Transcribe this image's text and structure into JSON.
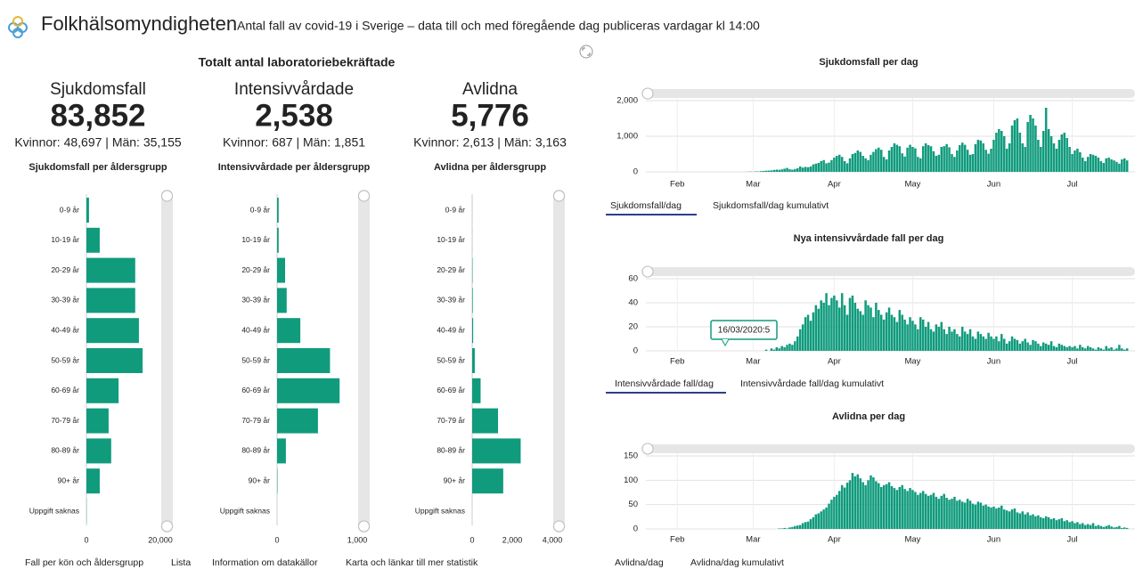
{
  "header": {
    "title": "Folkhälsomyndigheten",
    "subtitle": "Antal fall av covid-19 i Sverige – data till och med föregående dag publiceras vardagar kl 14:00"
  },
  "totals": {
    "title": "Totalt antal laboratoriebekräftade",
    "items": [
      {
        "label": "Sjukdomsfall",
        "value": "83,852",
        "detail": "Kvinnor: 48,697 | Män: 35,155"
      },
      {
        "label": "Intensivvårdade",
        "value": "2,538",
        "detail": "Kvinnor: 687 | Män: 1,851"
      },
      {
        "label": "Avlidna",
        "value": "5,776",
        "detail": "Kvinnor: 2,613 | Män: 3,163"
      }
    ]
  },
  "chart_data": [
    {
      "type": "hbar",
      "title": "Sjukdomsfall per åldersgrupp",
      "categories": [
        "0-9 år",
        "10-19 år",
        "20-29 år",
        "30-39 år",
        "40-49 år",
        "50-59 år",
        "60-69 år",
        "70-79 år",
        "80-89 år",
        "90+ år",
        "Uppgift saknas"
      ],
      "values": [
        700,
        3600,
        13200,
        13200,
        14200,
        15200,
        8700,
        6000,
        6700,
        3600,
        50
      ],
      "color": "#109b7d",
      "xlim": [
        0,
        20000
      ],
      "xticks": [
        0,
        {
          "value": 20000,
          "label": "20,000"
        }
      ]
    },
    {
      "type": "hbar",
      "title": "Intensivvårdade per åldersgrupp",
      "categories": [
        "0-9 år",
        "10-19 år",
        "20-29 år",
        "30-39 år",
        "40-49 år",
        "50-59 år",
        "60-69 år",
        "70-79 år",
        "80-89 år",
        "90+ år",
        "Uppgift saknas"
      ],
      "values": [
        20,
        20,
        100,
        120,
        290,
        660,
        780,
        510,
        110,
        5,
        0
      ],
      "color": "#109b7d",
      "xlim": [
        0,
        1000
      ],
      "xticks": [
        0,
        {
          "value": 1000,
          "label": "1,000"
        }
      ]
    },
    {
      "type": "hbar",
      "title": "Avlidna per åldersgrupp",
      "categories": [
        "0-9 år",
        "10-19 år",
        "20-29 år",
        "30-39 år",
        "40-49 år",
        "50-59 år",
        "60-69 år",
        "70-79 år",
        "80-89 år",
        "90+ år",
        "Uppgift saknas"
      ],
      "values": [
        1,
        2,
        20,
        30,
        50,
        130,
        420,
        1290,
        2420,
        1550,
        0
      ],
      "color": "#109b7d",
      "xlim": [
        0,
        4000
      ],
      "xticks": [
        0,
        {
          "value": 2000,
          "label": "2,000"
        },
        {
          "value": 4000,
          "label": "4,000"
        }
      ]
    },
    {
      "type": "bar",
      "title": "Sjukdomsfall per dag",
      "color": "#109b7d",
      "grid": true,
      "xlim": [
        -4,
        183
      ],
      "xticks": [
        {
          "value": 8,
          "label": "Feb"
        },
        {
          "value": 37,
          "label": "Mar"
        },
        {
          "value": 68,
          "label": "Apr"
        },
        {
          "value": 98,
          "label": "May"
        },
        {
          "value": 129,
          "label": "Jun"
        },
        {
          "value": 159,
          "label": "Jul"
        }
      ],
      "ylim": [
        0,
        2000
      ],
      "yticks": [
        0,
        {
          "value": 1000,
          "label": "1,000"
        },
        {
          "value": 2000,
          "label": "2,000"
        }
      ],
      "tabs": [
        "Sjukdomsfall/dag",
        "Sjukdomsfall/dag kumulativt"
      ],
      "values": [
        0,
        0,
        0,
        0,
        0,
        0,
        0,
        1,
        0,
        0,
        0,
        0,
        0,
        0,
        0,
        0,
        0,
        0,
        0,
        0,
        0,
        0,
        0,
        0,
        0,
        0,
        0,
        0,
        0,
        0,
        0,
        0,
        0,
        0,
        1,
        5,
        7,
        3,
        13,
        10,
        20,
        26,
        33,
        36,
        40,
        54,
        63,
        58,
        70,
        90,
        110,
        74,
        60,
        80,
        100,
        150,
        120,
        140,
        130,
        150,
        210,
        230,
        250,
        300,
        330,
        240,
        260,
        330,
        400,
        450,
        480,
        420,
        300,
        240,
        380,
        500,
        530,
        600,
        560,
        450,
        380,
        330,
        480,
        560,
        640,
        680,
        620,
        420,
        350,
        600,
        700,
        800,
        760,
        720,
        520,
        430,
        680,
        760,
        700,
        660,
        420,
        380,
        720,
        800,
        750,
        720,
        580,
        450,
        480,
        700,
        720,
        780,
        690,
        500,
        420,
        600,
        750,
        820,
        760,
        620,
        480,
        500,
        780,
        900,
        880,
        800,
        620,
        510,
        650,
        900,
        1100,
        1200,
        1150,
        1000,
        650,
        800,
        1300,
        1450,
        1500,
        1100,
        800,
        700,
        1400,
        1600,
        1500,
        1300,
        900,
        700,
        1150,
        1800,
        1200,
        1000,
        800,
        650,
        900,
        1050,
        1100,
        950,
        700,
        500,
        600,
        650,
        550,
        400,
        300,
        420,
        500,
        480,
        450,
        400,
        300,
        250,
        380,
        400,
        350,
        320,
        280,
        230,
        350,
        380,
        320
      ]
    },
    {
      "type": "bar",
      "title": "Nya intensivvårdade fall per dag",
      "color": "#109b7d",
      "grid": true,
      "xlim": [
        -4,
        183
      ],
      "xticks": [
        {
          "value": 8,
          "label": "Feb"
        },
        {
          "value": 37,
          "label": "Mar"
        },
        {
          "value": 68,
          "label": "Apr"
        },
        {
          "value": 98,
          "label": "May"
        },
        {
          "value": 129,
          "label": "Jun"
        },
        {
          "value": 159,
          "label": "Jul"
        }
      ],
      "ylim": [
        0,
        60
      ],
      "yticks": [
        0,
        20,
        40,
        60
      ],
      "tabs": [
        "Intensivvårdade fall/dag",
        "Intensivvårdade fall/dag kumulativt"
      ],
      "annotation": "16/03/2020:5",
      "values": [
        0,
        0,
        0,
        0,
        0,
        0,
        0,
        0,
        0,
        0,
        0,
        0,
        0,
        0,
        0,
        0,
        0,
        0,
        0,
        0,
        0,
        0,
        0,
        0,
        0,
        0,
        0,
        0,
        0,
        0,
        0,
        0,
        0,
        0,
        0,
        0,
        0,
        0,
        0,
        0,
        0,
        0,
        1,
        0,
        2,
        1,
        3,
        2,
        4,
        3,
        5,
        6,
        5,
        8,
        12,
        18,
        22,
        28,
        30,
        25,
        32,
        38,
        35,
        42,
        40,
        48,
        38,
        44,
        46,
        42,
        36,
        48,
        38,
        30,
        44,
        46,
        40,
        35,
        33,
        30,
        42,
        38,
        36,
        28,
        40,
        34,
        30,
        26,
        32,
        36,
        30,
        28,
        24,
        34,
        30,
        26,
        22,
        28,
        25,
        22,
        18,
        28,
        26,
        20,
        24,
        18,
        16,
        22,
        20,
        24,
        18,
        14,
        20,
        16,
        18,
        14,
        12,
        20,
        16,
        14,
        18,
        12,
        10,
        16,
        14,
        12,
        10,
        15,
        12,
        10,
        12,
        8,
        14,
        10,
        6,
        8,
        12,
        10,
        9,
        6,
        8,
        10,
        7,
        5,
        9,
        8,
        6,
        4,
        7,
        6,
        5,
        8,
        4,
        3,
        6,
        5,
        4,
        3,
        4,
        3,
        4,
        2,
        5,
        3,
        2,
        4,
        3,
        2,
        1,
        3,
        2,
        1,
        4,
        2,
        3,
        1,
        2,
        5,
        2,
        1,
        2
      ]
    },
    {
      "type": "bar",
      "title": "Avlidna per dag",
      "color": "#109b7d",
      "grid": true,
      "xlim": [
        -4,
        183
      ],
      "xticks": [
        {
          "value": 8,
          "label": "Feb"
        },
        {
          "value": 37,
          "label": "Mar"
        },
        {
          "value": 68,
          "label": "Apr"
        },
        {
          "value": 98,
          "label": "May"
        },
        {
          "value": 129,
          "label": "Jun"
        },
        {
          "value": 159,
          "label": "Jul"
        }
      ],
      "ylim": [
        0,
        150
      ],
      "yticks": [
        0,
        50,
        100,
        150
      ],
      "tabs": [
        "Avlidna/dag",
        "Avlidna/dag kumulativt"
      ],
      "values": [
        0,
        0,
        0,
        0,
        0,
        0,
        0,
        0,
        0,
        0,
        0,
        0,
        0,
        0,
        0,
        0,
        0,
        0,
        0,
        0,
        0,
        0,
        0,
        0,
        0,
        0,
        0,
        0,
        0,
        0,
        0,
        0,
        0,
        0,
        0,
        0,
        0,
        0,
        0,
        0,
        0,
        0,
        0,
        0,
        0,
        0,
        0,
        1,
        1,
        2,
        1,
        3,
        4,
        6,
        7,
        8,
        12,
        14,
        15,
        20,
        24,
        30,
        32,
        36,
        40,
        44,
        52,
        60,
        66,
        70,
        78,
        90,
        85,
        95,
        100,
        115,
        108,
        112,
        104,
        96,
        90,
        100,
        110,
        106,
        98,
        94,
        86,
        90,
        92,
        96,
        88,
        84,
        80,
        86,
        90,
        82,
        78,
        84,
        80,
        76,
        70,
        74,
        78,
        72,
        68,
        70,
        74,
        66,
        62,
        68,
        72,
        64,
        60,
        62,
        66,
        58,
        60,
        56,
        54,
        62,
        58,
        52,
        50,
        56,
        54,
        48,
        50,
        46,
        44,
        46,
        42,
        44,
        48,
        40,
        38,
        36,
        40,
        42,
        34,
        32,
        36,
        30,
        34,
        28,
        30,
        26,
        28,
        24,
        22,
        26,
        24,
        20,
        22,
        18,
        20,
        22,
        16,
        18,
        14,
        16,
        12,
        14,
        10,
        12,
        8,
        10,
        8,
        12,
        6,
        8,
        6,
        4,
        6,
        8,
        5,
        3,
        4,
        6,
        2,
        3,
        2
      ]
    }
  ],
  "links": [
    "Fall per kön och åldersgrupp",
    "Lista",
    "Information om datakällor",
    "Karta och länkar till mer statistik"
  ]
}
